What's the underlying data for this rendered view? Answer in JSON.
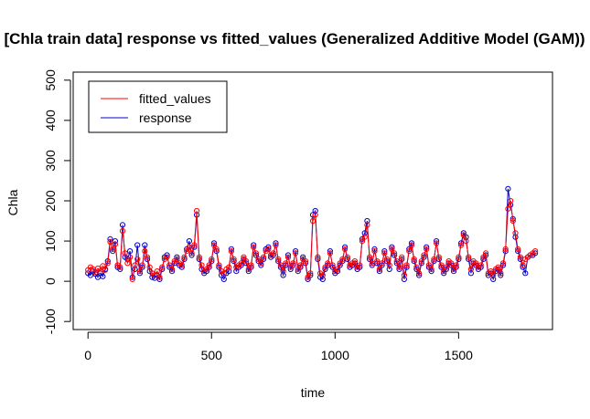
{
  "chart_data": {
    "type": "line",
    "title": "[Chla train data] response vs fitted_values (Generalized Additive Model (GAM))",
    "xlabel": "time",
    "ylabel": "Chla",
    "xlim": [
      -60,
      1880
    ],
    "ylim": [
      -120,
      520
    ],
    "x_ticks": [
      0,
      500,
      1000,
      1500
    ],
    "y_ticks": [
      -100,
      0,
      100,
      200,
      300,
      400,
      500
    ],
    "x_tick_labels": [
      "0",
      "500",
      "1000",
      "1500"
    ],
    "y_tick_labels": [
      "-100",
      "0",
      "100",
      "200",
      "300",
      "400",
      "500"
    ],
    "grid": false,
    "legend_position": "top-left",
    "series": [
      {
        "name": "fitted_values",
        "color": "#ff0000",
        "marker": "open-circle",
        "x": [
          0,
          10,
          20,
          30,
          40,
          50,
          60,
          70,
          80,
          90,
          100,
          110,
          120,
          130,
          140,
          150,
          160,
          170,
          180,
          190,
          200,
          210,
          220,
          230,
          240,
          250,
          260,
          270,
          280,
          290,
          300,
          310,
          320,
          330,
          340,
          350,
          360,
          370,
          380,
          390,
          400,
          410,
          420,
          430,
          440,
          450,
          460,
          470,
          480,
          490,
          500,
          510,
          520,
          530,
          540,
          550,
          560,
          570,
          580,
          590,
          600,
          610,
          620,
          630,
          640,
          650,
          660,
          670,
          680,
          690,
          700,
          710,
          720,
          730,
          740,
          750,
          760,
          770,
          780,
          790,
          800,
          810,
          820,
          830,
          840,
          850,
          860,
          870,
          880,
          890,
          900,
          910,
          920,
          930,
          940,
          950,
          960,
          970,
          980,
          990,
          1000,
          1010,
          1020,
          1030,
          1040,
          1050,
          1060,
          1070,
          1080,
          1090,
          1100,
          1110,
          1120,
          1130,
          1140,
          1150,
          1160,
          1170,
          1180,
          1190,
          1200,
          1210,
          1220,
          1230,
          1240,
          1250,
          1260,
          1270,
          1280,
          1290,
          1300,
          1310,
          1320,
          1330,
          1340,
          1350,
          1360,
          1370,
          1380,
          1390,
          1400,
          1410,
          1420,
          1430,
          1440,
          1450,
          1460,
          1470,
          1480,
          1490,
          1500,
          1510,
          1520,
          1530,
          1540,
          1550,
          1560,
          1570,
          1580,
          1590,
          1600,
          1610,
          1620,
          1630,
          1640,
          1650,
          1660,
          1670,
          1680,
          1690,
          1700,
          1710,
          1720,
          1730,
          1740,
          1750,
          1760,
          1770,
          1780,
          1790,
          1800,
          1810
        ],
        "y": [
          28,
          35,
          30,
          22,
          32,
          25,
          38,
          28,
          45,
          98,
          80,
          92,
          40,
          35,
          125,
          70,
          45,
          60,
          5,
          40,
          55,
          25,
          40,
          75,
          60,
          35,
          20,
          15,
          25,
          10,
          35,
          55,
          60,
          40,
          30,
          50,
          55,
          45,
          40,
          60,
          75,
          85,
          70,
          90,
          175,
          60,
          40,
          25,
          30,
          40,
          55,
          90,
          80,
          40,
          25,
          20,
          30,
          35,
          75,
          55,
          35,
          40,
          45,
          60,
          50,
          30,
          40,
          85,
          70,
          55,
          45,
          60,
          75,
          80,
          65,
          70,
          90,
          55,
          40,
          25,
          45,
          60,
          35,
          45,
          70,
          30,
          40,
          55,
          50,
          10,
          20,
          150,
          165,
          60,
          20,
          15,
          35,
          45,
          70,
          40,
          25,
          30,
          45,
          55,
          80,
          60,
          40,
          45,
          50,
          35,
          40,
          100,
          110,
          140,
          60,
          45,
          75,
          50,
          30,
          45,
          70,
          55,
          40,
          80,
          70,
          50,
          35,
          60,
          15,
          40,
          75,
          90,
          55,
          35,
          20,
          50,
          65,
          80,
          40,
          30,
          55,
          95,
          60,
          40,
          25,
          35,
          50,
          45,
          30,
          40,
          60,
          90,
          115,
          100,
          60,
          30,
          50,
          45,
          35,
          40,
          60,
          70,
          20,
          25,
          15,
          30,
          35,
          20,
          45,
          80,
          180,
          200,
          150,
          120,
          80,
          60,
          40,
          55,
          60,
          65,
          70,
          75
        ]
      },
      {
        "name": "response",
        "color": "#0000cc",
        "marker": "open-circle",
        "x": [
          0,
          10,
          20,
          30,
          40,
          50,
          60,
          70,
          80,
          90,
          100,
          110,
          120,
          130,
          140,
          150,
          160,
          170,
          180,
          190,
          200,
          210,
          220,
          230,
          240,
          250,
          260,
          270,
          280,
          290,
          300,
          310,
          320,
          330,
          340,
          350,
          360,
          370,
          380,
          390,
          400,
          410,
          420,
          430,
          440,
          450,
          460,
          470,
          480,
          490,
          500,
          510,
          520,
          530,
          540,
          550,
          560,
          570,
          580,
          590,
          600,
          610,
          620,
          630,
          640,
          650,
          660,
          670,
          680,
          690,
          700,
          710,
          720,
          730,
          740,
          750,
          760,
          770,
          780,
          790,
          800,
          810,
          820,
          830,
          840,
          850,
          860,
          870,
          880,
          890,
          900,
          910,
          920,
          930,
          940,
          950,
          960,
          970,
          980,
          990,
          1000,
          1010,
          1020,
          1030,
          1040,
          1050,
          1060,
          1070,
          1080,
          1090,
          1100,
          1110,
          1120,
          1130,
          1140,
          1150,
          1160,
          1170,
          1180,
          1190,
          1200,
          1210,
          1220,
          1230,
          1240,
          1250,
          1260,
          1270,
          1280,
          1290,
          1300,
          1310,
          1320,
          1330,
          1340,
          1350,
          1360,
          1370,
          1380,
          1390,
          1400,
          1410,
          1420,
          1430,
          1440,
          1450,
          1460,
          1470,
          1480,
          1490,
          1500,
          1510,
          1520,
          1530,
          1540,
          1550,
          1560,
          1570,
          1580,
          1590,
          1600,
          1610,
          1620,
          1630,
          1640,
          1650,
          1660,
          1670,
          1680,
          1690,
          1700,
          1710,
          1720,
          1730,
          1740,
          1750,
          1760,
          1770,
          1780,
          1790,
          1800,
          1810
        ],
        "y": [
          20,
          15,
          25,
          18,
          10,
          20,
          12,
          30,
          50,
          105,
          75,
          100,
          35,
          30,
          140,
          60,
          55,
          75,
          10,
          30,
          90,
          20,
          35,
          90,
          55,
          25,
          10,
          8,
          15,
          5,
          30,
          60,
          65,
          35,
          25,
          45,
          60,
          40,
          35,
          55,
          80,
          100,
          65,
          85,
          165,
          55,
          30,
          20,
          25,
          35,
          50,
          95,
          75,
          35,
          15,
          5,
          20,
          25,
          80,
          50,
          25,
          35,
          40,
          55,
          45,
          25,
          35,
          90,
          65,
          50,
          40,
          55,
          80,
          85,
          60,
          65,
          95,
          50,
          35,
          15,
          40,
          65,
          30,
          40,
          75,
          25,
          35,
          60,
          45,
          5,
          15,
          165,
          175,
          55,
          10,
          5,
          30,
          40,
          75,
          35,
          20,
          25,
          40,
          50,
          85,
          55,
          35,
          40,
          45,
          30,
          35,
          105,
          120,
          150,
          55,
          40,
          80,
          45,
          25,
          40,
          75,
          50,
          30,
          85,
          65,
          45,
          30,
          55,
          5,
          35,
          80,
          95,
          50,
          30,
          15,
          45,
          60,
          85,
          35,
          25,
          50,
          100,
          55,
          35,
          20,
          30,
          45,
          40,
          25,
          35,
          55,
          95,
          120,
          110,
          55,
          20,
          45,
          40,
          30,
          35,
          55,
          65,
          15,
          20,
          5,
          25,
          30,
          15,
          40,
          75,
          230,
          190,
          155,
          110,
          75,
          55,
          35,
          20,
          60,
          65,
          65,
          70
        ]
      }
    ]
  }
}
